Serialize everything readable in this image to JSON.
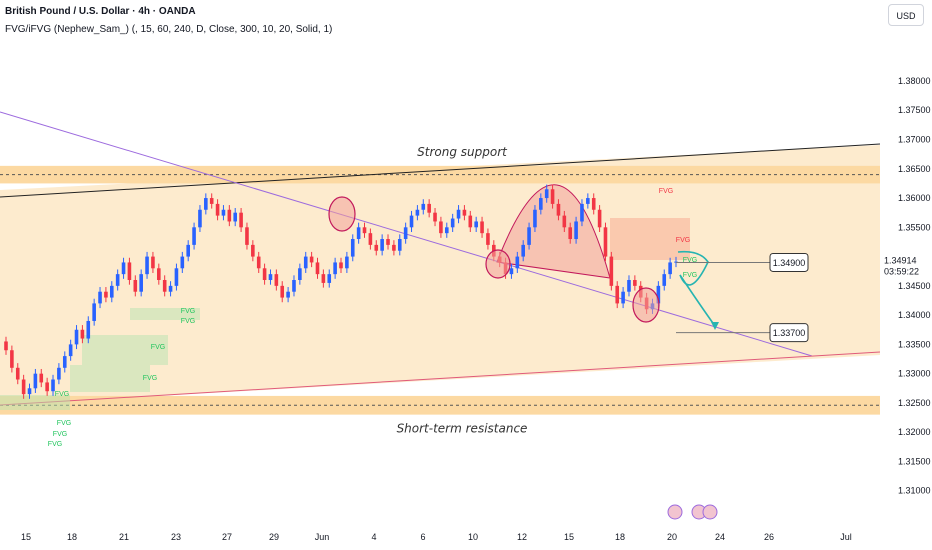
{
  "header": {
    "title": "British Pound / U.S. Dollar · 4h · OANDA",
    "indicator": "FVG/iFVG (Nephew_Sam_) (, 15, 60, 240, D, Close, 300, 10, 20, Solid, 1)"
  },
  "currency_button": "USD",
  "chart_data": {
    "type": "candlestick",
    "symbol": "GBPUSD",
    "timeframe": "4h",
    "ylim": [
      1.305,
      1.387
    ],
    "y_ticks": [
      "1.38000",
      "1.37500",
      "1.37000",
      "1.36500",
      "1.36000",
      "1.35500",
      "1.35000",
      "1.34500",
      "1.34000",
      "1.33500",
      "1.33000",
      "1.32500",
      "1.32000",
      "1.31500",
      "1.31000"
    ],
    "x_ticks": [
      "15",
      "18",
      "21",
      "23",
      "27",
      "29",
      "Jun",
      "4",
      "6",
      "10",
      "12",
      "15",
      "18",
      "20",
      "24",
      "26",
      "Jul"
    ],
    "last_price": "1.34914",
    "countdown": "03:59:22",
    "levels": [
      {
        "label": "1.34900",
        "value": 1.349
      },
      {
        "label": "1.33700",
        "value": 1.337
      }
    ],
    "zones": [
      {
        "label": "Strong support",
        "top": 1.3655,
        "bottom": 1.3625
      },
      {
        "label": "Short-term resistance",
        "top": 1.3262,
        "bottom": 1.323
      }
    ],
    "fvg_labels": [
      "FVG",
      "FVG",
      "FVG",
      "FVG",
      "FVG",
      "FVG",
      "FVG",
      "FVG",
      "FVG",
      "FVG",
      "FVG",
      "FVG"
    ],
    "colors": {
      "bull": "#2962ff",
      "bear": "#f23645",
      "zone": "#fcd9a2",
      "bg_zone": "#fdebce",
      "fvg_bull": "#22c55e",
      "fvg_bear": "#f23645",
      "projection": "#26b4b1"
    },
    "closes": [
      1.334,
      1.331,
      1.329,
      1.3265,
      1.3275,
      1.33,
      1.3285,
      1.327,
      1.329,
      1.331,
      1.333,
      1.335,
      1.3375,
      1.336,
      1.339,
      1.342,
      1.344,
      1.343,
      1.345,
      1.347,
      1.349,
      1.346,
      1.344,
      1.347,
      1.35,
      1.348,
      1.346,
      1.344,
      1.345,
      1.348,
      1.35,
      1.352,
      1.355,
      1.358,
      1.36,
      1.359,
      1.357,
      1.358,
      1.356,
      1.3575,
      1.355,
      1.352,
      1.35,
      1.348,
      1.346,
      1.347,
      1.345,
      1.343,
      1.344,
      1.346,
      1.348,
      1.35,
      1.349,
      1.347,
      1.3455,
      1.347,
      1.349,
      1.348,
      1.35,
      1.353,
      1.355,
      1.354,
      1.352,
      1.351,
      1.353,
      1.352,
      1.351,
      1.353,
      1.355,
      1.357,
      1.358,
      1.359,
      1.3575,
      1.356,
      1.354,
      1.355,
      1.3565,
      1.358,
      1.357,
      1.355,
      1.356,
      1.354,
      1.352,
      1.35,
      1.349,
      1.347,
      1.348,
      1.35,
      1.352,
      1.355,
      1.358,
      1.36,
      1.3615,
      1.359,
      1.357,
      1.355,
      1.353,
      1.356,
      1.359,
      1.36,
      1.358,
      1.355,
      1.35,
      1.345,
      1.342,
      1.344,
      1.346,
      1.345,
      1.343,
      1.341,
      1.342,
      1.345,
      1.347,
      1.349,
      1.34914
    ]
  }
}
